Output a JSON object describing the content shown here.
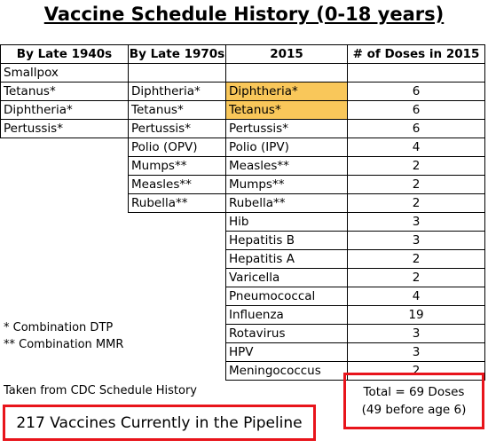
{
  "title": "Vaccine Schedule History (0-18 years)",
  "headers": [
    "By Late 1940s",
    "By Late 1970s",
    "2015",
    "# of Doses in 2015"
  ],
  "col1940s": [
    "Smallpox",
    "Tetanus*",
    "Diphtheria*",
    "Pertussis*"
  ],
  "col1970s": [
    "",
    "Diphtheria*",
    "Tetanus*",
    "Pertussis*",
    "Polio (OPV)",
    "Mumps**",
    "Measles**",
    "Rubella**"
  ],
  "col2015": [
    "",
    "Diphtheria*",
    "Tetanus*",
    "Pertussis*",
    "Polio (IPV)",
    "Measles**",
    "Mumps**",
    "Rubella**",
    "Hib",
    "Hepatitis B",
    "Hepatitis A",
    "Varicella",
    "Pneumococcal",
    "Influenza",
    "Rotavirus",
    "HPV",
    "Meningococcus"
  ],
  "doses": [
    "",
    "6",
    "6",
    "6",
    "4",
    "2",
    "2",
    "2",
    "3",
    "3",
    "2",
    "2",
    "4",
    "19",
    "3",
    "3",
    "2"
  ],
  "highlight_color": "#f9c75a",
  "accent_color": "#e8141b",
  "notes": {
    "dtp": "* Combination DTP",
    "mmr": "** Combination MMR",
    "source": "Taken from CDC Schedule History"
  },
  "pipeline": "217 Vaccines Currently in the Pipeline",
  "total": {
    "line1": "Total = 69 Doses",
    "line2": "(49 before age 6)"
  }
}
